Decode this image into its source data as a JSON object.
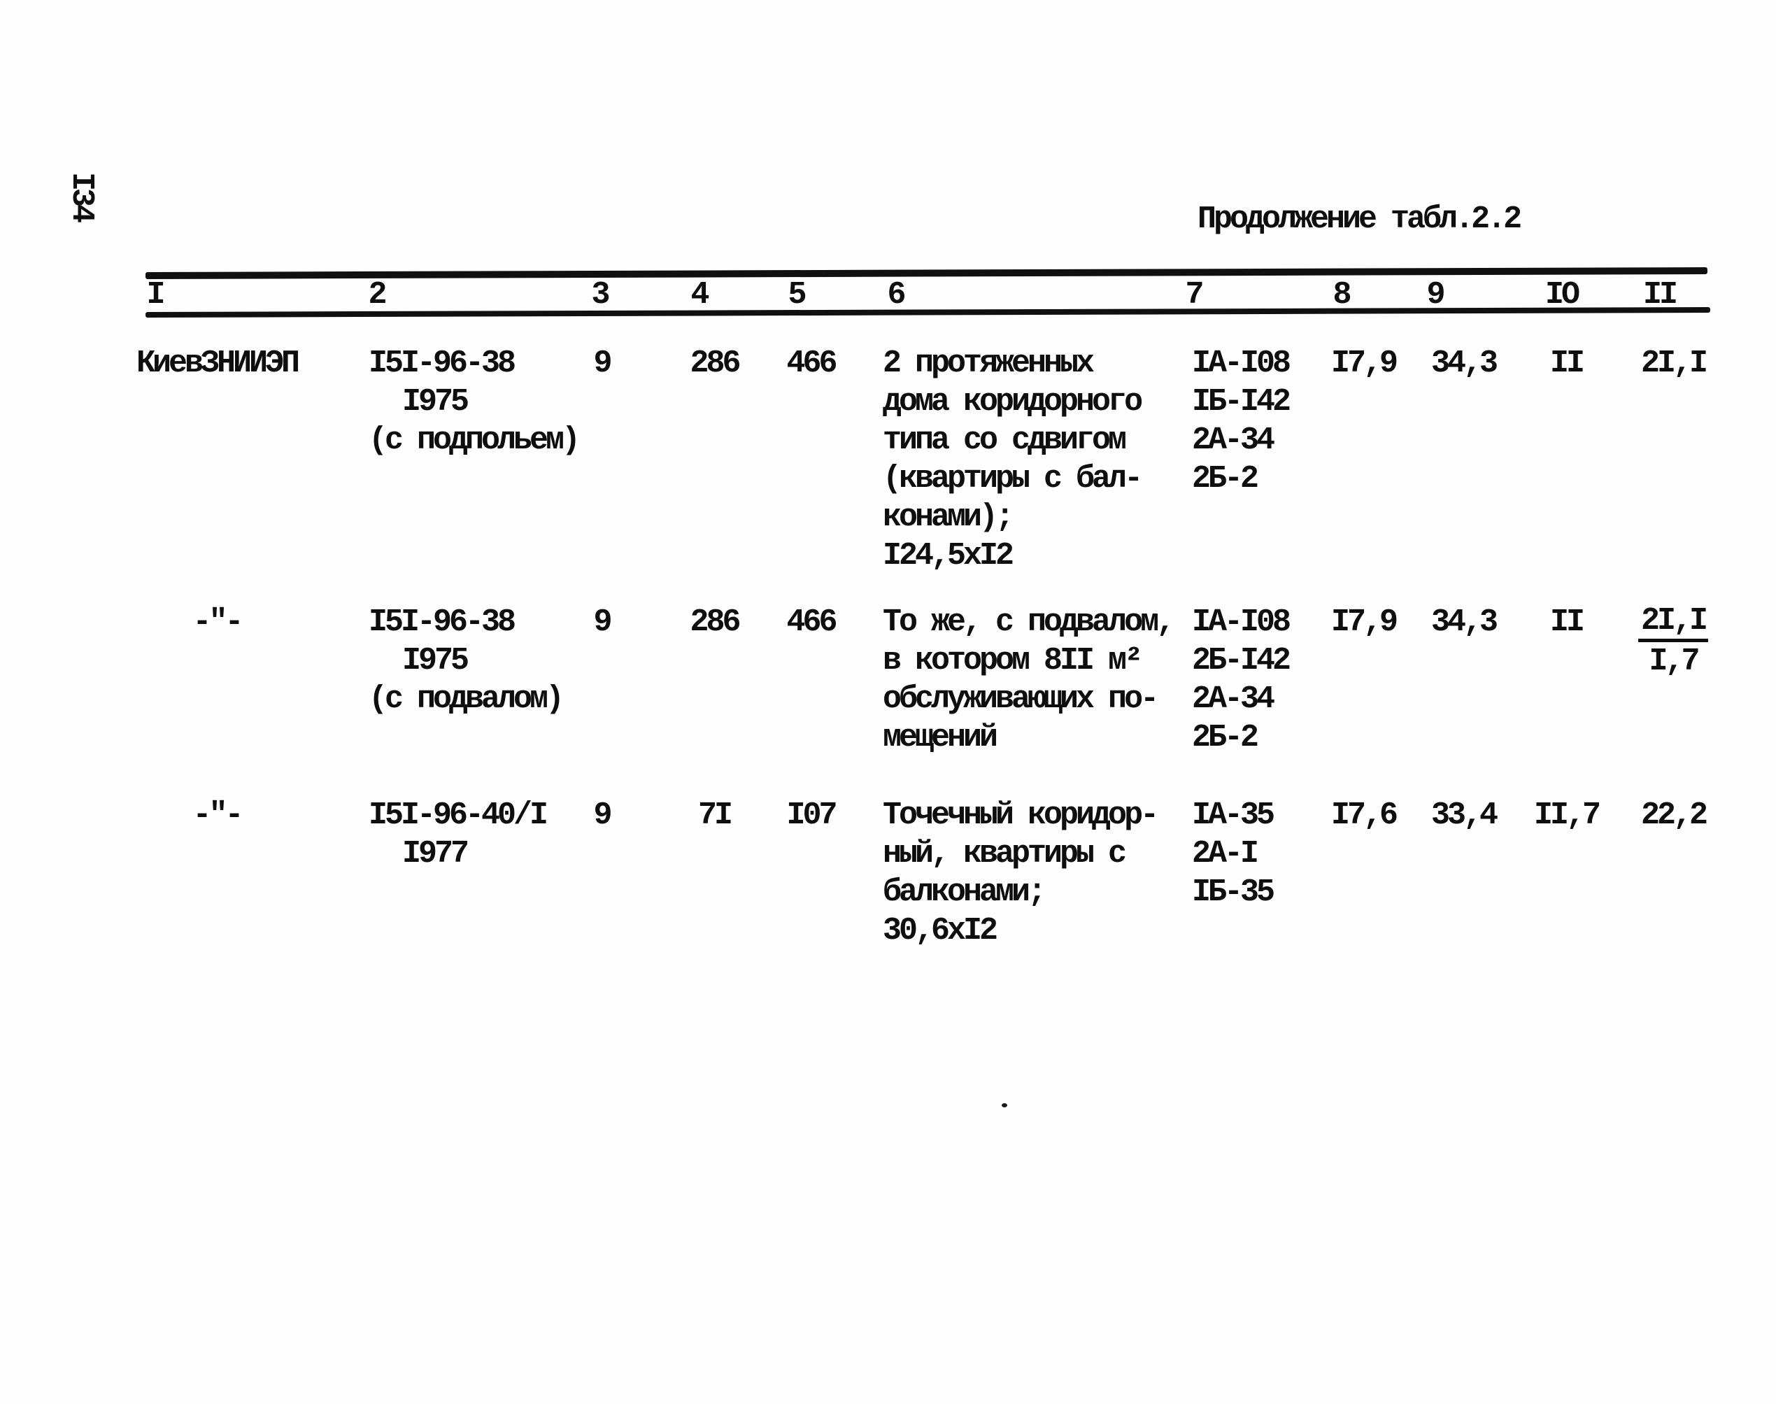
{
  "page": {
    "number": "I34",
    "table_caption": "Продолжение табл.2.2"
  },
  "table": {
    "headers": [
      "I",
      "2",
      "3",
      "4",
      "5",
      "6",
      "7",
      "8",
      "9",
      "IO",
      "II"
    ],
    "rows": [
      {
        "c1": [
          "КиевЗНИИЭП"
        ],
        "c2": [
          "I5I-96-38",
          "I975",
          "(с подпольем)"
        ],
        "c3": [
          "9"
        ],
        "c4": [
          "286"
        ],
        "c5": [
          "466"
        ],
        "c6": [
          "2 протяженных",
          "дома коридорного",
          "типа со сдвигом",
          "(квартиры с бал-",
          "конами);",
          "I24,5хI2"
        ],
        "c7": [
          "IА-I08",
          "IБ-I42",
          "2А-34",
          "2Б-2"
        ],
        "c8": [
          "I7,9"
        ],
        "c9": [
          "34,3"
        ],
        "c10": [
          "II"
        ],
        "c11": [
          "2I,I"
        ]
      },
      {
        "c1": [
          "-\"-"
        ],
        "c2": [
          "I5I-96-38",
          "I975",
          "(с подвалом)"
        ],
        "c3": [
          "9"
        ],
        "c4": [
          "286"
        ],
        "c5": [
          "466"
        ],
        "c6": [
          "То же, с подвалом,",
          "в котором 8II м²",
          "обслуживающих по-",
          "мещений"
        ],
        "c7": [
          "IА-I08",
          "2Б-I42",
          "2А-34",
          "2Б-2"
        ],
        "c8": [
          "I7,9"
        ],
        "c9": [
          "34,3"
        ],
        "c10": [
          "II"
        ],
        "c11": [
          {
            "text": "2I,I",
            "underline": true
          },
          "I,7"
        ]
      },
      {
        "c1": [
          "-\"-"
        ],
        "c2": [
          "I5I-96-40/I",
          "I977"
        ],
        "c3": [
          "9"
        ],
        "c4": [
          "7I"
        ],
        "c5": [
          "I07"
        ],
        "c6": [
          "Точечный коридор-",
          "ный, квартиры с",
          "балконами;",
          "30,6хI2"
        ],
        "c7": [
          "IА-35",
          "2А-I",
          "IБ-35"
        ],
        "c8": [
          "I7,6"
        ],
        "c9": [
          "33,4"
        ],
        "c10": [
          "II,7"
        ],
        "c11": [
          "22,2"
        ]
      }
    ]
  }
}
